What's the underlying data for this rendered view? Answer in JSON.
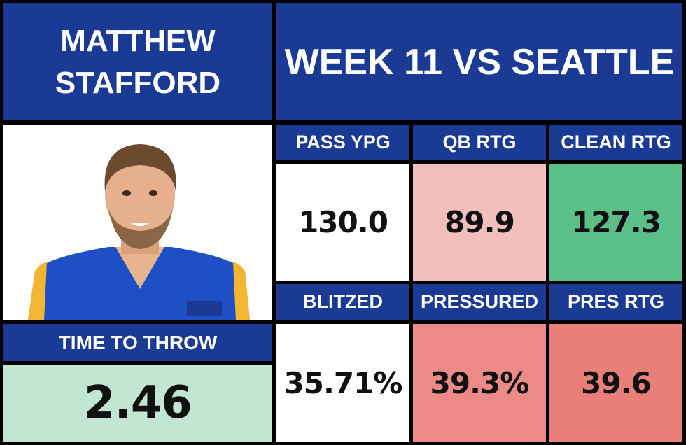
{
  "header": {
    "player": "MATTHEW STAFFORD",
    "game": "WEEK 11 VS SEATTLE"
  },
  "time_to_throw": {
    "label": "TIME TO THROW",
    "value": "2.46"
  },
  "stats": [
    {
      "label": "PASS YPG",
      "value": "130.0"
    },
    {
      "label": "QB RTG",
      "value": "89.9"
    },
    {
      "label": "CLEAN RTG",
      "value": "127.3"
    },
    {
      "label": "BLITZED",
      "value": "35.71%"
    },
    {
      "label": "PRESSURED",
      "value": "39.3%"
    },
    {
      "label": "PRES RTG",
      "value": "39.6"
    }
  ]
}
